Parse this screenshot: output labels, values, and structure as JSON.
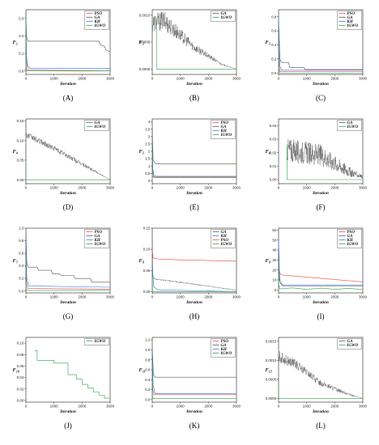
{
  "figure": {
    "xlabel": "Iteration"
  },
  "colors": {
    "PSO": "#e8474a",
    "GA": "#555555",
    "KH": "#3b6fe0",
    "IGWO": "#2ea24a"
  },
  "chart_data": [
    {
      "type": "line",
      "caption": "(A)",
      "ylabel": "F1",
      "ylabel_main": "F",
      "ylabel_sub": "1",
      "xlabel": "Iteration",
      "xlim": [
        0,
        3000
      ],
      "ylim": [
        -0.02,
        0.35
      ],
      "xticks": [
        0,
        1000,
        2000,
        3000
      ],
      "yticks": [
        0.0,
        0.1,
        0.2,
        0.3
      ],
      "ytick_labels": [
        "0.0",
        "0.1",
        "0.2",
        "0.3"
      ],
      "legend": "top-right",
      "series": [
        {
          "name": "PSO",
          "x": [
            0,
            15,
            40,
            80,
            3000
          ],
          "y": [
            0.35,
            0.1,
            0.03,
            0.005,
            0.0
          ]
        },
        {
          "name": "GA",
          "x": [
            0,
            20,
            60,
            70,
            2600,
            2650,
            2800,
            2850,
            3000
          ],
          "y": [
            0.33,
            0.2,
            0.175,
            0.17,
            0.17,
            0.15,
            0.14,
            0.12,
            0.11
          ]
        },
        {
          "name": "KH",
          "x": [
            0,
            20,
            60,
            150,
            3000
          ],
          "y": [
            0.34,
            0.08,
            0.03,
            0.015,
            0.015
          ]
        },
        {
          "name": "IGWO",
          "x": [
            0,
            10,
            30,
            3000
          ],
          "y": [
            0.3,
            0.02,
            0.0,
            0.0
          ]
        }
      ]
    },
    {
      "type": "line",
      "caption": "(B)",
      "ylabel": "F2",
      "ylabel_main": "F",
      "ylabel_sub": "2",
      "xlabel": "Iteration",
      "xlim": [
        0,
        3000
      ],
      "ylim": [
        -0.0001,
        0.0011
      ],
      "xticks": [
        0,
        1000,
        2000,
        3000
      ],
      "yticks": [
        0.0,
        0.0005,
        0.001
      ],
      "ytick_labels": [
        "0.0000",
        "0.0005",
        "0.0010"
      ],
      "legend": "top-right",
      "series": [
        {
          "name": "GA",
          "noisy": true,
          "x": [
            0,
            400,
            1500,
            2500,
            3000
          ],
          "y": [
            0.00085,
            0.0009,
            0.0004,
            8e-05,
            0.0
          ],
          "noise": [
            0.00018,
            0.00018,
            8e-05,
            2e-05,
            0.0
          ]
        },
        {
          "name": "IGWO",
          "x": [
            150,
            152,
            3000
          ],
          "y": [
            0.0009,
            0.0,
            0.0
          ]
        }
      ]
    },
    {
      "type": "line",
      "caption": "(C)",
      "ylabel": "F3",
      "ylabel_main": "F",
      "ylabel_sub": "3",
      "xlabel": "Iteration",
      "xlim": [
        0,
        3000
      ],
      "ylim": [
        -0.02,
        0.9
      ],
      "xticks": [
        0,
        1000,
        2000,
        3000
      ],
      "yticks": [
        0.0,
        0.2,
        0.4,
        0.6,
        0.8
      ],
      "ytick_labels": [
        "0.0",
        "0.2",
        "0.4",
        "0.6",
        "0.8"
      ],
      "legend": "top-right",
      "series": [
        {
          "name": "PSO",
          "x": [
            0,
            20,
            60,
            3000
          ],
          "y": [
            0.6,
            0.1,
            0.02,
            0.02
          ]
        },
        {
          "name": "GA",
          "x": [
            0,
            50,
            100,
            350,
            400,
            900,
            950,
            3000
          ],
          "y": [
            0.7,
            0.2,
            0.15,
            0.15,
            0.08,
            0.08,
            0.05,
            0.05
          ]
        },
        {
          "name": "KH",
          "x": [
            0,
            20,
            50,
            100,
            3000
          ],
          "y": [
            0.8,
            0.5,
            0.1,
            0.04,
            0.04
          ]
        },
        {
          "name": "IGWO",
          "x": [
            0,
            10,
            40,
            3000
          ],
          "y": [
            0.5,
            0.05,
            0.0,
            0.0
          ]
        }
      ]
    },
    {
      "type": "line",
      "caption": "(D)",
      "ylabel": "F4",
      "ylabel_main": "F",
      "ylabel_sub": "4",
      "xlabel": "Iteration",
      "xlim": [
        0,
        3000
      ],
      "ylim": [
        -0.01,
        0.155
      ],
      "xticks": [
        0,
        1000,
        2000,
        3000
      ],
      "yticks": [
        0.0,
        0.05,
        0.1,
        0.15
      ],
      "ytick_labels": [
        "0.00",
        "0.05",
        "0.10",
        "0.15"
      ],
      "legend": "top-right",
      "series": [
        {
          "name": "GA",
          "noisy": true,
          "x": [
            0,
            1000,
            2000,
            3000
          ],
          "y": [
            0.115,
            0.08,
            0.04,
            0.0
          ],
          "noise": [
            0.008,
            0.007,
            0.006,
            0.0
          ]
        },
        {
          "name": "IGWO",
          "x": [
            0,
            2,
            3000
          ],
          "y": [
            0.07,
            0.0,
            0.0
          ]
        }
      ]
    },
    {
      "type": "line",
      "caption": "(E)",
      "ylabel": "F5",
      "ylabel_main": "F",
      "ylabel_sub": "5",
      "xlabel": "Iteration",
      "xlim": [
        0,
        3000
      ],
      "ylim": [
        -0.2,
        4.2
      ],
      "xticks": [
        0,
        1000,
        2000,
        3000
      ],
      "yticks": [
        0,
        0.5,
        1,
        1.5,
        2,
        2.5,
        3,
        3.5,
        4
      ],
      "ytick_labels": [
        "0",
        "0.5",
        "1",
        "1.5",
        "2",
        "2.5",
        "3",
        "3.5",
        "4"
      ],
      "legend": "top-right",
      "series": [
        {
          "name": "PSO",
          "x": [
            0,
            20,
            60,
            3000
          ],
          "y": [
            3.0,
            0.6,
            0.2,
            0.2
          ]
        },
        {
          "name": "GA",
          "x": [
            0,
            30,
            100,
            150,
            3000
          ],
          "y": [
            3.6,
            1.4,
            1.2,
            1.15,
            1.15
          ]
        },
        {
          "name": "KH",
          "x": [
            0,
            20,
            60,
            150,
            3000
          ],
          "y": [
            3.2,
            0.8,
            0.35,
            0.3,
            0.3
          ]
        },
        {
          "name": "IGWO",
          "x": [
            0,
            10,
            40,
            3000
          ],
          "y": [
            2.8,
            0.3,
            0.25,
            0.25
          ]
        }
      ]
    },
    {
      "type": "line",
      "caption": "(F)",
      "ylabel": "F6",
      "ylabel_main": "F",
      "ylabel_sub": "6",
      "xlabel": "Iteration",
      "xlim": [
        0,
        3000
      ],
      "ylim": [
        -0.003,
        0.045
      ],
      "xticks": [
        0,
        1000,
        2000,
        3000
      ],
      "yticks": [
        0.0,
        0.01,
        0.02,
        0.03,
        0.04
      ],
      "ytick_labels": [
        "0.00",
        "0.01",
        "0.02",
        "0.03",
        "0.04"
      ],
      "legend": "top-right",
      "series": [
        {
          "name": "GA",
          "noisy": true,
          "x": [
            300,
            1500,
            2500,
            3000
          ],
          "y": [
            0.022,
            0.018,
            0.006,
            0.002
          ],
          "noise": [
            0.009,
            0.008,
            0.004,
            0.001
          ]
        },
        {
          "name": "IGWO",
          "x": [
            300,
            302,
            3000
          ],
          "y": [
            0.026,
            0.0,
            0.0
          ]
        }
      ]
    },
    {
      "type": "line",
      "caption": "(G)",
      "ylabel": "F7",
      "ylabel_main": "F",
      "ylabel_sub": "7",
      "xlabel": "Iteration",
      "xlim": [
        0,
        3000
      ],
      "ylim": [
        -0.03,
        1.0
      ],
      "xticks": [
        0,
        1000,
        2000,
        3000
      ],
      "yticks": [
        0.0,
        0.2,
        0.4,
        0.6,
        0.8,
        1.0
      ],
      "ytick_labels": [
        "0.0",
        "0.2",
        "0.4",
        "0.6",
        "0.8",
        "1.0"
      ],
      "legend": "top-right",
      "series": [
        {
          "name": "PSO",
          "x": [
            0,
            20,
            60,
            3000
          ],
          "y": [
            0.7,
            0.15,
            0.04,
            0.03
          ]
        },
        {
          "name": "GA",
          "x": [
            0,
            30,
            80,
            400,
            450,
            900,
            950,
            1200,
            1250,
            1700,
            1750,
            2300,
            2350,
            3000
          ],
          "y": [
            0.95,
            0.45,
            0.38,
            0.38,
            0.33,
            0.33,
            0.27,
            0.27,
            0.25,
            0.25,
            0.2,
            0.2,
            0.14,
            0.14
          ]
        },
        {
          "name": "KH",
          "x": [
            0,
            30,
            100,
            3000
          ],
          "y": [
            0.8,
            0.2,
            0.08,
            0.06
          ]
        },
        {
          "name": "IGWO",
          "x": [
            0,
            10,
            40,
            3000
          ],
          "y": [
            0.6,
            0.03,
            0.01,
            0.01
          ]
        }
      ]
    },
    {
      "type": "line",
      "caption": "(H)",
      "ylabel": "F8",
      "ylabel_main": "F",
      "ylabel_sub": "8",
      "xlabel": "Iteration",
      "xlim": [
        0,
        3000
      ],
      "ylim": [
        -0.003,
        0.15
      ],
      "xticks": [
        0,
        1000,
        2000,
        3000
      ],
      "yticks": [
        0.0,
        0.05,
        0.1,
        0.15
      ],
      "ytick_labels": [
        "0.00",
        "0.05",
        "0.10",
        "0.15"
      ],
      "legend": "top-right",
      "series": [
        {
          "name": "GA",
          "noisy": true,
          "x": [
            0,
            20,
            80,
            1000,
            2000,
            3000
          ],
          "y": [
            0.125,
            0.04,
            0.03,
            0.022,
            0.013,
            0.003
          ],
          "noise": [
            0.0,
            0.002,
            0.002,
            0.0015,
            0.0012,
            0.0008
          ]
        },
        {
          "name": "KH",
          "x": [
            0,
            50,
            200,
            3000
          ],
          "y": [
            0.06,
            0.012,
            0.004,
            0.0
          ]
        },
        {
          "name": "PSO",
          "x": [
            0,
            30,
            200,
            1000,
            3000
          ],
          "y": [
            0.1,
            0.08,
            0.077,
            0.075,
            0.072
          ]
        },
        {
          "name": "IGWO",
          "x": [
            0,
            10,
            3000
          ],
          "y": [
            0.05,
            0.0,
            0.0
          ]
        }
      ]
    },
    {
      "type": "line",
      "caption": "(I)",
      "ylabel": "F9",
      "ylabel_main": "F",
      "ylabel_sub": "9",
      "xlabel": "Iteration",
      "xlim": [
        0,
        3000
      ],
      "ylim": [
        -3,
        62
      ],
      "xticks": [
        0,
        1000,
        2000,
        3000
      ],
      "yticks": [
        0,
        10,
        20,
        30,
        40,
        50,
        60
      ],
      "ytick_labels": [
        "0",
        "10",
        "20",
        "30",
        "40",
        "50",
        "60"
      ],
      "legend": "top-right",
      "series": [
        {
          "name": "PSO",
          "x": [
            0,
            30,
            100,
            3000
          ],
          "y": [
            48,
            18,
            15,
            8
          ]
        },
        {
          "name": "GA",
          "x": [
            0,
            30,
            80,
            150,
            3000
          ],
          "y": [
            45,
            10,
            6,
            4,
            4
          ]
        },
        {
          "name": "KH",
          "x": [
            0,
            20,
            60,
            150,
            3000
          ],
          "y": [
            55,
            20,
            8,
            5,
            5
          ]
        },
        {
          "name": "IGWO",
          "x": [
            0,
            10,
            40,
            500,
            1000,
            1500,
            2000,
            2500,
            3000
          ],
          "y": [
            30,
            5,
            1,
            2,
            0.5,
            1.8,
            0.6,
            1.5,
            0.4
          ]
        }
      ]
    },
    {
      "type": "line",
      "caption": "(J)",
      "ylabel": "F10",
      "ylabel_main": "F",
      "ylabel_sub": "10",
      "xlabel": "Iteration",
      "xlim": [
        0,
        3000
      ],
      "ylim": [
        -0.003,
        0.11
      ],
      "xticks": [
        0,
        1000,
        2000,
        3000
      ],
      "yticks": [
        0.0,
        0.02,
        0.04,
        0.06,
        0.08,
        0.1
      ],
      "ytick_labels": [
        "0.00",
        "0.02",
        "0.04",
        "0.06",
        "0.08",
        "0.10"
      ],
      "legend": "top-right",
      "series": [
        {
          "name": "IGWO",
          "step": true,
          "x": [
            300,
            400,
            1000,
            1500,
            1800,
            2000,
            2200,
            2400,
            2600,
            2800,
            3000
          ],
          "y": [
            0.087,
            0.07,
            0.065,
            0.045,
            0.037,
            0.028,
            0.022,
            0.015,
            0.009,
            0.004,
            0.004
          ]
        }
      ]
    },
    {
      "type": "line",
      "caption": "(K)",
      "ylabel": "F11",
      "ylabel_main": "F",
      "ylabel_sub": "11",
      "xlabel": "Iteration",
      "xlim": [
        0,
        3000
      ],
      "ylim": [
        -0.05,
        1.25
      ],
      "xticks": [
        0,
        1000,
        2000,
        3000
      ],
      "yticks": [
        0.0,
        0.2,
        0.4,
        0.6,
        0.8,
        1.0,
        1.2
      ],
      "ytick_labels": [
        "0.0",
        "0.2",
        "0.4",
        "0.6",
        "0.8",
        "1.0",
        "1.2"
      ],
      "legend": "top-right",
      "series": [
        {
          "name": "PSO",
          "x": [
            0,
            20,
            60,
            3000
          ],
          "y": [
            0.9,
            0.2,
            0.1,
            0.1
          ]
        },
        {
          "name": "GA",
          "x": [
            0,
            40,
            100,
            3000
          ],
          "y": [
            1.05,
            0.5,
            0.45,
            0.45
          ]
        },
        {
          "name": "KH",
          "x": [
            0,
            30,
            100,
            3000
          ],
          "y": [
            1.1,
            0.3,
            0.12,
            0.12
          ]
        },
        {
          "name": "IGWO",
          "x": [
            0,
            10,
            40,
            3000
          ],
          "y": [
            0.85,
            0.05,
            0.02,
            0.02
          ]
        }
      ]
    },
    {
      "type": "line",
      "caption": "(L)",
      "ylabel": "F12",
      "ylabel_main": "F",
      "ylabel_sub": "12",
      "xlabel": "Iteration",
      "xlim": [
        0,
        3000
      ],
      "ylim": [
        -0.0001,
        0.0016
      ],
      "xticks": [
        0,
        1000,
        2000,
        3000
      ],
      "yticks": [
        0.0,
        0.0005,
        0.001,
        0.0015
      ],
      "ytick_labels": [
        "0.0000",
        "0.0005",
        "0.0010",
        "0.0015"
      ],
      "legend": "top-right",
      "series": [
        {
          "name": "GA",
          "noisy": true,
          "x": [
            0,
            600,
            1500,
            2500,
            3000
          ],
          "y": [
            0.0011,
            0.0009,
            0.0004,
            0.0001,
            0.0
          ],
          "noise": [
            0.00015,
            0.00012,
            8e-05,
            3e-05,
            0.0
          ]
        },
        {
          "name": "IGWO",
          "x": [
            0,
            2,
            3000
          ],
          "y": [
            0.0005,
            0.0,
            0.0
          ]
        }
      ]
    }
  ]
}
